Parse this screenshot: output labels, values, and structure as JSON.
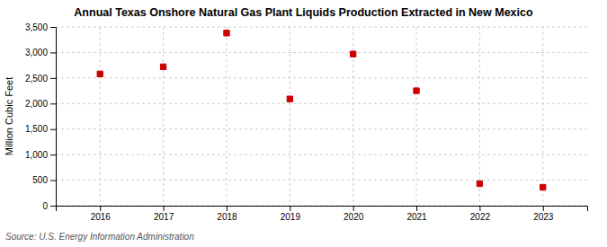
{
  "chart_data": {
    "type": "scatter",
    "title": "Annual Texas Onshore Natural Gas Plant Liquids Production Extracted in New Mexico",
    "y_label": "Million Cubic Feet",
    "source": "Source: U.S. Energy Information Administration",
    "x": [
      2016,
      2017,
      2018,
      2019,
      2020,
      2021,
      2022,
      2023
    ],
    "values": [
      2580,
      2720,
      3380,
      2090,
      2970,
      2250,
      430,
      360
    ],
    "color": "#cc0000",
    "marker": "square",
    "xlim": [
      2015.3,
      2023.7
    ],
    "xticks": [
      2016,
      2017,
      2018,
      2019,
      2020,
      2021,
      2022,
      2023
    ],
    "ylim": [
      0,
      3500
    ],
    "yticks": [
      0,
      500,
      {
        "value": 1000,
        "label": "1,000"
      },
      {
        "value": 1500,
        "label": "1,500"
      },
      {
        "value": 2000,
        "label": "2,000"
      },
      {
        "value": 2500,
        "label": "2,500"
      },
      {
        "value": 3000,
        "label": "3,000"
      },
      {
        "value": 3500,
        "label": "3,500"
      }
    ],
    "grid": true
  }
}
